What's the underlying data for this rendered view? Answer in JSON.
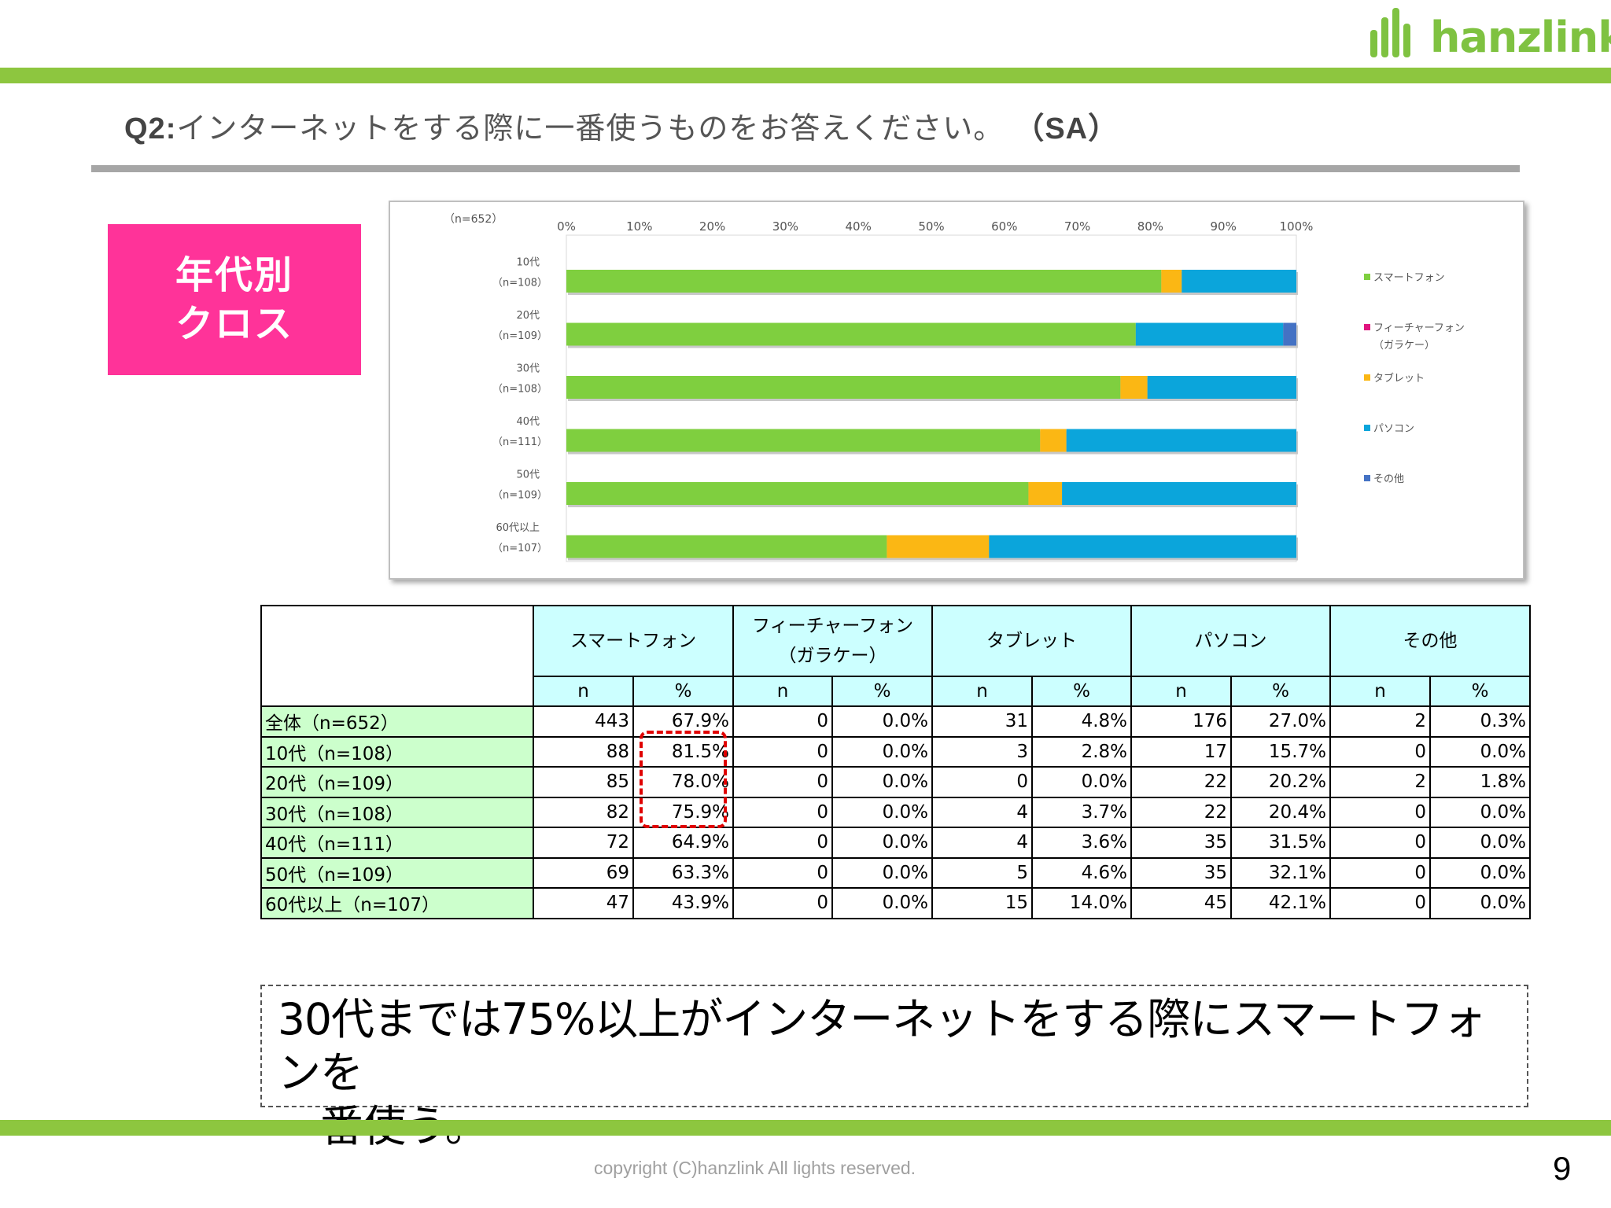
{
  "brand": {
    "logo_text": "hanzlink",
    "accent": "#8dc63f"
  },
  "question": {
    "prefix": "Q2:",
    "text": "インターネットをする際に一番使うものをお答えください。",
    "suffix": "（SA）"
  },
  "badge": {
    "line1": "年代別",
    "line2": "クロス",
    "color": "#ff3399"
  },
  "chart_data": {
    "type": "bar",
    "orientation": "horizontal",
    "stacked": "percent",
    "note": "（n=652）",
    "xlim": [
      0,
      100
    ],
    "x_ticks": [
      "0%",
      "10%",
      "20%",
      "30%",
      "40%",
      "50%",
      "60%",
      "70%",
      "80%",
      "90%",
      "100%"
    ],
    "categories": [
      "10代",
      "20代",
      "30代",
      "40代",
      "50代",
      "60代以上"
    ],
    "category_n": [
      "（n=108）",
      "（n=109）",
      "（n=108）",
      "（n=111）",
      "（n=109）",
      "（n=107）"
    ],
    "legend_position": "right",
    "series": [
      {
        "name": "スマートフォン",
        "color": "#7fcf3f",
        "values": [
          81.5,
          78.0,
          75.9,
          64.9,
          63.3,
          43.9
        ]
      },
      {
        "name": "フィーチャーフォン（ガラケー）",
        "color": "#e0157f",
        "values": [
          0.0,
          0.0,
          0.0,
          0.0,
          0.0,
          0.0
        ]
      },
      {
        "name": "タブレット",
        "color": "#fbb714",
        "values": [
          2.8,
          0.0,
          3.7,
          3.6,
          4.6,
          14.0
        ]
      },
      {
        "name": "パソコン",
        "color": "#0ba5db",
        "values": [
          15.7,
          20.2,
          20.4,
          31.5,
          32.1,
          42.1
        ]
      },
      {
        "name": "その他",
        "color": "#4472c4",
        "values": [
          0.0,
          1.8,
          0.0,
          0.0,
          0.0,
          0.0
        ]
      }
    ],
    "legend_labels": [
      {
        "lines": [
          "スマートフォン"
        ]
      },
      {
        "lines": [
          "フィーチャーフォン",
          "（ガラケー）"
        ]
      },
      {
        "lines": [
          "タブレット"
        ]
      },
      {
        "lines": [
          "パソコン"
        ]
      },
      {
        "lines": [
          "その他"
        ]
      }
    ]
  },
  "table": {
    "headers": [
      {
        "lines": [
          "スマートフォン"
        ]
      },
      {
        "lines": [
          "フィーチャーフォン",
          "（ガラケー）"
        ]
      },
      {
        "lines": [
          "タブレット"
        ]
      },
      {
        "lines": [
          "パソコン"
        ]
      },
      {
        "lines": [
          "その他"
        ]
      }
    ],
    "sub_headers": [
      "n",
      "%"
    ],
    "rows": [
      {
        "label": "全体（n=652）",
        "cells": [
          "443",
          "67.9%",
          "0",
          "0.0%",
          "31",
          "4.8%",
          "176",
          "27.0%",
          "2",
          "0.3%"
        ]
      },
      {
        "label": "10代（n=108）",
        "cells": [
          "88",
          "81.5%",
          "0",
          "0.0%",
          "3",
          "2.8%",
          "17",
          "15.7%",
          "0",
          "0.0%"
        ]
      },
      {
        "label": "20代（n=109）",
        "cells": [
          "85",
          "78.0%",
          "0",
          "0.0%",
          "0",
          "0.0%",
          "22",
          "20.2%",
          "2",
          "1.8%"
        ]
      },
      {
        "label": "30代（n=108）",
        "cells": [
          "82",
          "75.9%",
          "0",
          "0.0%",
          "4",
          "3.7%",
          "22",
          "20.4%",
          "0",
          "0.0%"
        ]
      },
      {
        "label": "40代（n=111）",
        "cells": [
          "72",
          "64.9%",
          "0",
          "0.0%",
          "4",
          "3.6%",
          "35",
          "31.5%",
          "0",
          "0.0%"
        ]
      },
      {
        "label": "50代（n=109）",
        "cells": [
          "69",
          "63.3%",
          "0",
          "0.0%",
          "5",
          "4.6%",
          "35",
          "32.1%",
          "0",
          "0.0%"
        ]
      },
      {
        "label": "60代以上（n=107）",
        "cells": [
          "47",
          "43.9%",
          "0",
          "0.0%",
          "15",
          "14.0%",
          "45",
          "42.1%",
          "0",
          "0.0%"
        ]
      }
    ]
  },
  "summary": {
    "line1": "30代までは75%以上がインターネットをする際にスマートフォンを",
    "line2": "一番使う。"
  },
  "footer": {
    "copyright": "copyright (C)hanzlink  All lights reserved.",
    "page_number": "9"
  }
}
